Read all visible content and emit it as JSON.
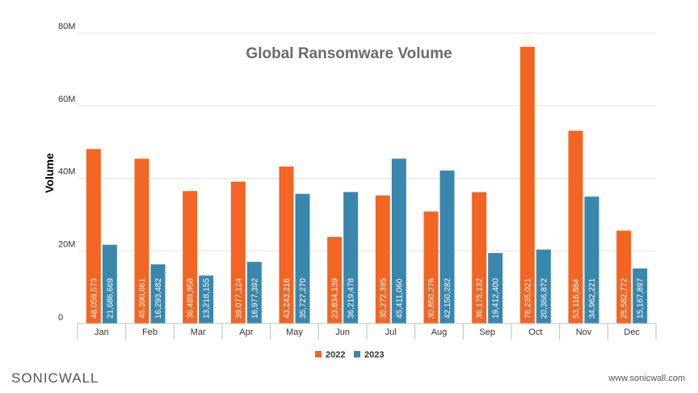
{
  "chart_data": {
    "type": "bar",
    "title": "Global Ransomware Volume",
    "xlabel": "",
    "ylabel": "Volume",
    "ylim": [
      0,
      80000000
    ],
    "yticks": [
      {
        "value": 0,
        "label": "0"
      },
      {
        "value": 20000000,
        "label": "20M"
      },
      {
        "value": 40000000,
        "label": "40M"
      },
      {
        "value": 60000000,
        "label": "60M"
      },
      {
        "value": 80000000,
        "label": "80M"
      }
    ],
    "grid": true,
    "legend_position": "bottom",
    "categories": [
      "Jan",
      "Feb",
      "Mar",
      "Apr",
      "May",
      "Jun",
      "Jul",
      "Aug",
      "Sep",
      "Oct",
      "Nov",
      "Dec"
    ],
    "series": [
      {
        "name": "2022",
        "color": "#f26522",
        "values": [
          48059573,
          45390661,
          36489958,
          39077124,
          43243216,
          23834139,
          35272395,
          30850276,
          36175132,
          76235021,
          53116884,
          25582772
        ],
        "labels": [
          "48,059,573",
          "45,390,661",
          "36,489,958",
          "39,077,124",
          "43,243,216",
          "23,834,139",
          "35,272,395",
          "30,850,276",
          "36,175,132",
          "76,235,021",
          "53,116,884",
          "25,582,772"
        ]
      },
      {
        "name": "2023",
        "color": "#3a87ad",
        "values": [
          21686669,
          16293482,
          13218155,
          16977392,
          35727270,
          36219478,
          45411060,
          42150282,
          19412400,
          20366872,
          34962221,
          15167897
        ],
        "labels": [
          "21,686,669",
          "16,293,482",
          "13,218,155",
          "16,977,392",
          "35,727,270",
          "36,219,478",
          "45,411,060",
          "42,150,282",
          "19,412,400",
          "20,366,872",
          "34,962,221",
          "15,167,897"
        ]
      }
    ]
  },
  "branding": {
    "logo_text": "SONICWALL",
    "url": "www.sonicwall.com"
  }
}
